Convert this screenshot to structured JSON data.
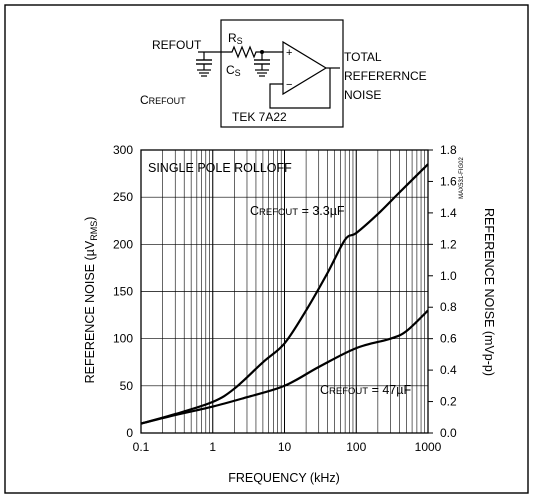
{
  "schematic": {
    "refout_label": "REFOUT",
    "rs_main": "R",
    "rs_sub": "S",
    "cs_main": "C",
    "cs_sub": "S",
    "crefout_main": "C",
    "crefout_sub": "REFOUT",
    "output_label_line1": "TOTAL",
    "output_label_line2": "REFERERNCE",
    "output_label_line3": "NOISE",
    "instrument_label": "TEK 7A22",
    "opamp_plus": "+",
    "opamp_minus": "−"
  },
  "figure_id": "MAX531-FIG02",
  "chart_data": {
    "type": "line",
    "title": "SINGLE POLE ROLLOFF",
    "xlabel": "FREQUENCY (kHz)",
    "x_scale": "log",
    "xlim": [
      0.1,
      1000
    ],
    "x_ticks": [
      "0.1",
      "1",
      "10",
      "100",
      "1000"
    ],
    "ylabel": {
      "prefix": "REFERENCE NOISE (",
      "unit_mu": "µ",
      "unit_v": "V",
      "unit_sub": "RMS",
      "suffix": ")"
    },
    "ylim": [
      0,
      300
    ],
    "y_ticks": [
      "0",
      "50",
      "100",
      "150",
      "200",
      "250",
      "300"
    ],
    "y2label": "REFERENCE NOISE (mVp-p)",
    "y2lim": [
      0,
      1.8
    ],
    "y2_ticks": [
      "0.0",
      "0.2",
      "0.4",
      "0.6",
      "0.8",
      "1.0",
      "1.2",
      "1.4",
      "1.6",
      "1.8"
    ],
    "grid": true,
    "series": [
      {
        "label_main": "C",
        "label_sub": "REFOUT",
        "label_value": " = 3.3µF",
        "x": [
          0.1,
          0.3,
          1,
          2,
          5,
          10,
          20,
          40,
          70,
          100,
          200,
          400,
          1000
        ],
        "values": [
          10,
          20,
          33,
          47,
          75,
          95,
          130,
          170,
          205,
          212,
          232,
          255,
          285
        ]
      },
      {
        "label_main": "C",
        "label_sub": "REFOUT",
        "label_value": " = 47µF",
        "x": [
          0.1,
          0.3,
          1,
          3,
          10,
          30,
          100,
          300,
          500,
          1000
        ],
        "values": [
          10,
          19,
          28,
          38,
          50,
          70,
          90,
          100,
          108,
          130
        ]
      }
    ]
  }
}
